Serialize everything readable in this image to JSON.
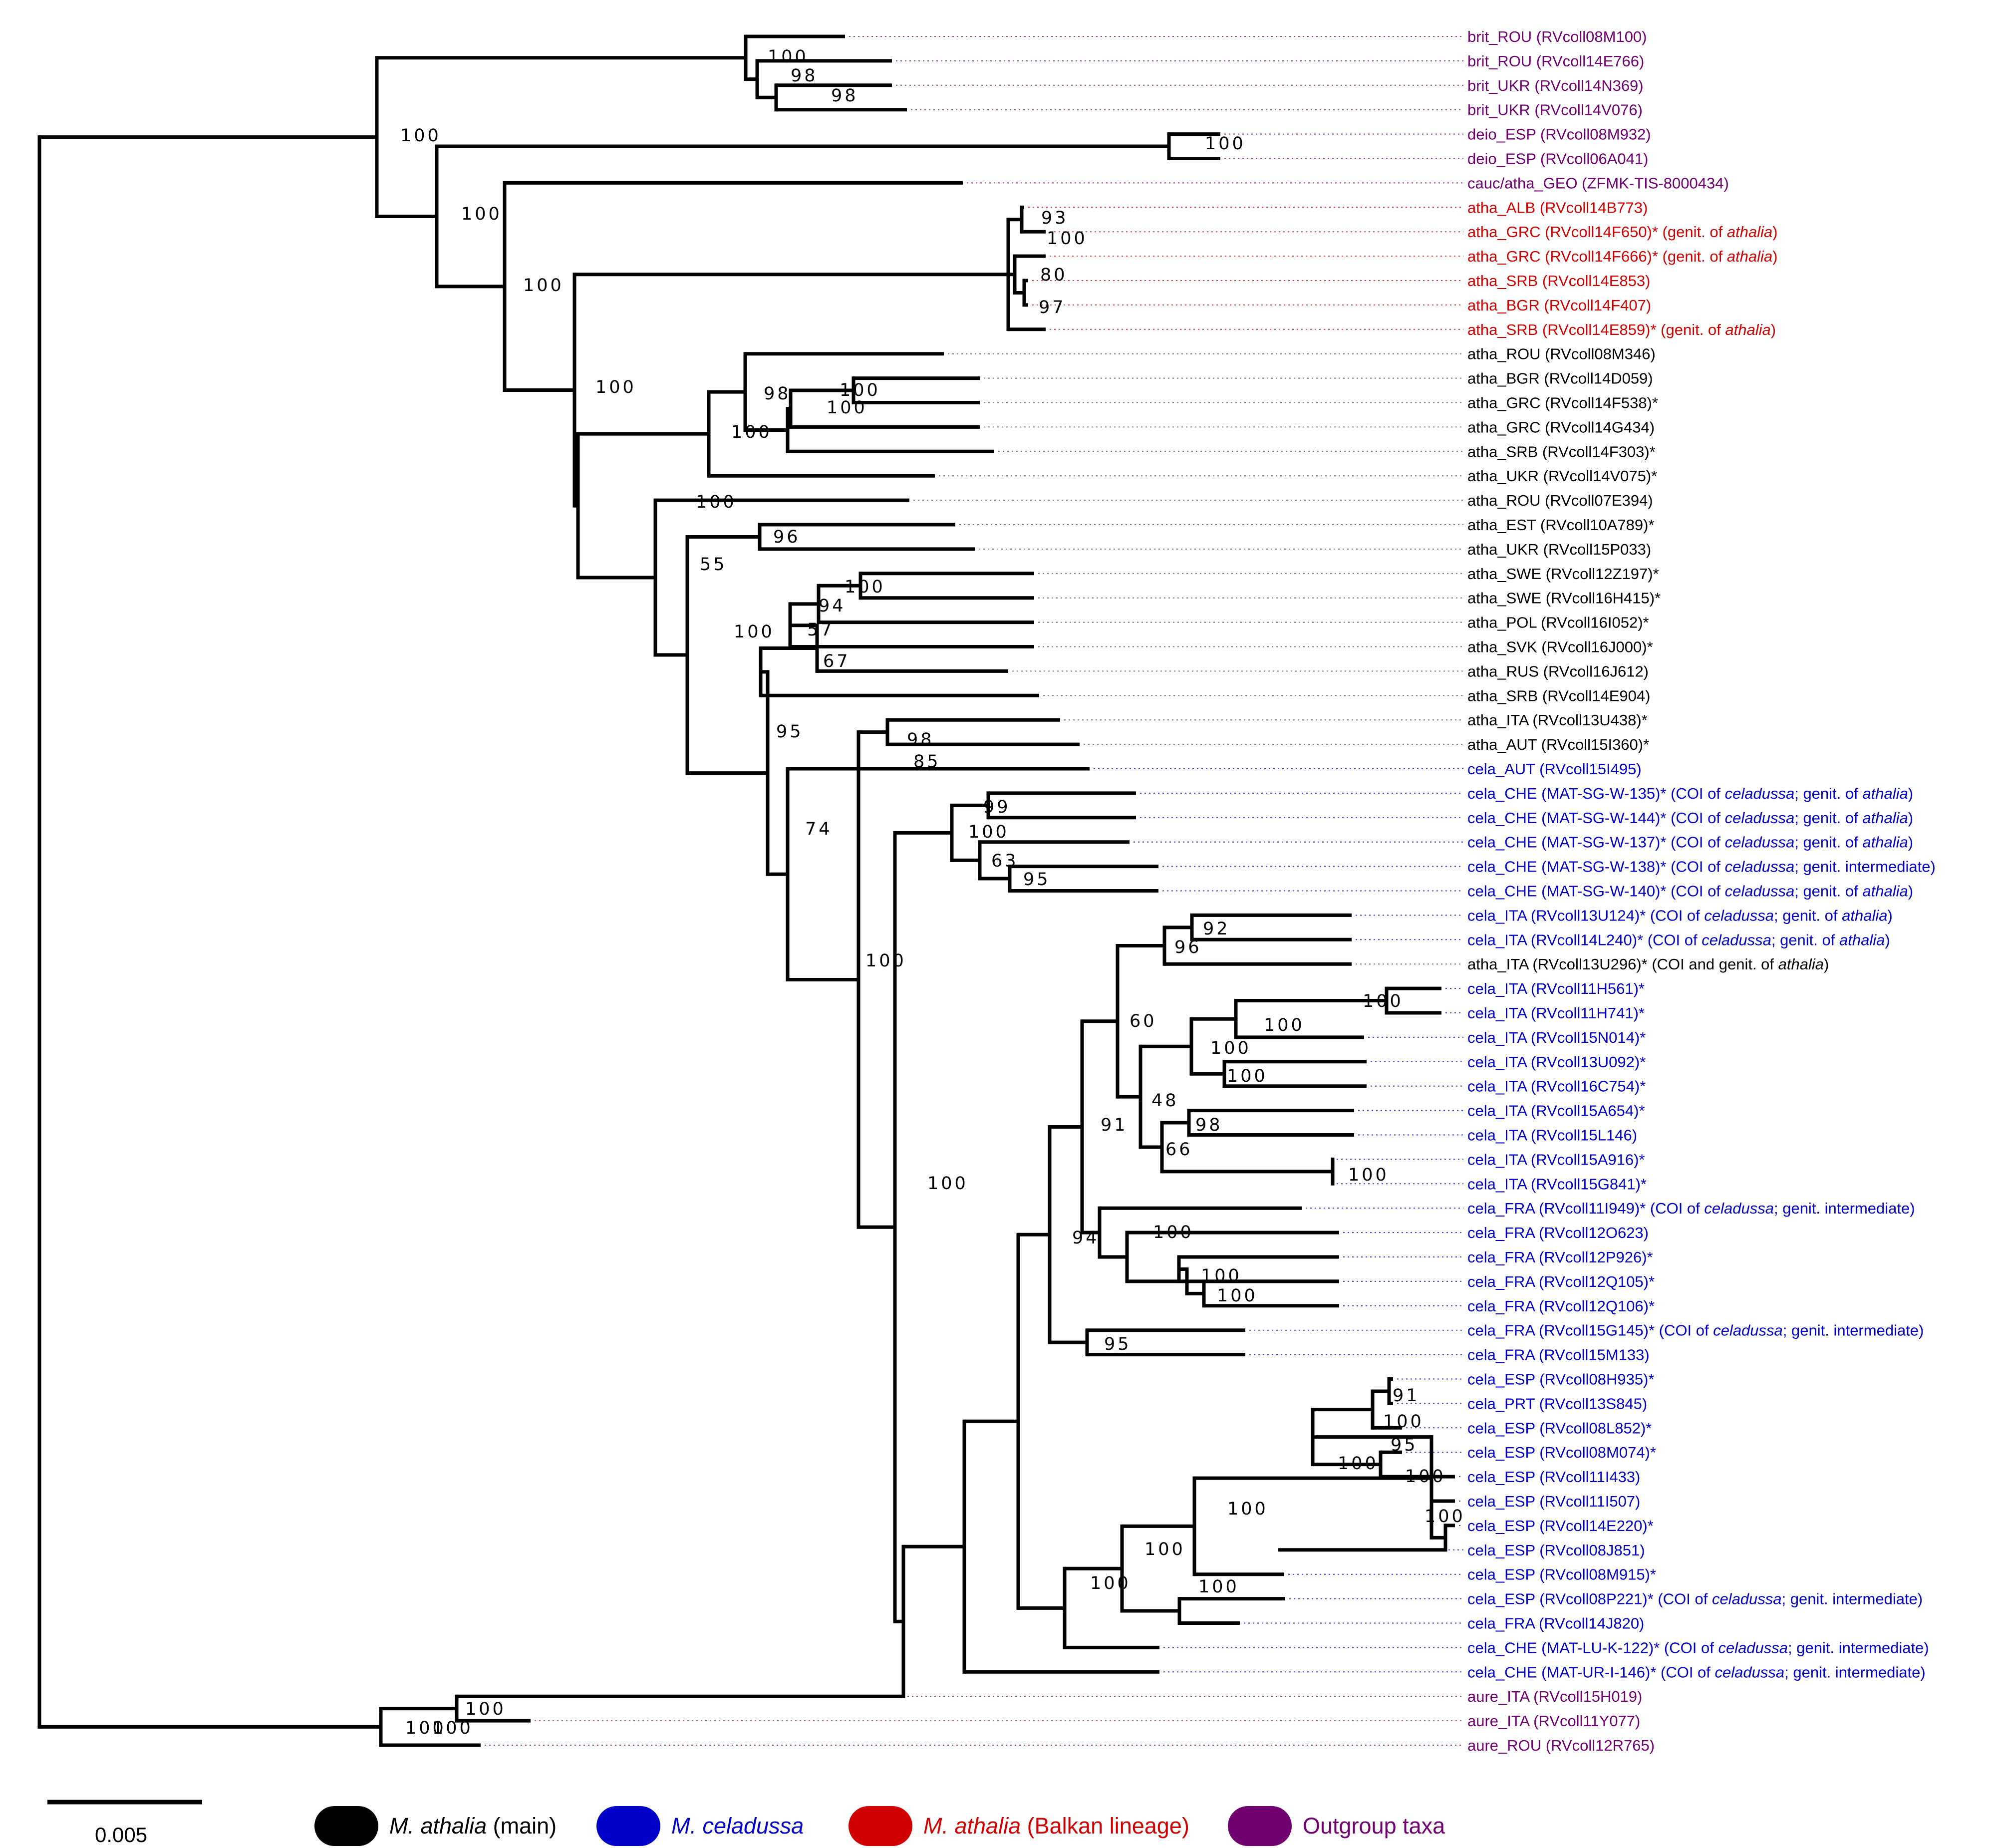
{
  "colors": {
    "athalia_main": "#000000",
    "celadussa": "#0000c8",
    "balkan": "#d00000",
    "outgroup": "#700070",
    "leader_black": "#7a7a7a",
    "leader_blue": "#3d3dd8",
    "leader_red": "#d04040",
    "leader_purple": "#904090"
  },
  "tips": [
    {
      "id": "t0",
      "group": "outgroup",
      "parts": [
        {
          "t": "brit_ROU    (RVcoll08M100)"
        }
      ]
    },
    {
      "id": "t1",
      "group": "outgroup",
      "parts": [
        {
          "t": "brit_ROU     (RVcoll14E766)"
        }
      ]
    },
    {
      "id": "t2",
      "group": "outgroup",
      "parts": [
        {
          "t": "brit_UKR (RVcoll14N369)"
        }
      ]
    },
    {
      "id": "t3",
      "group": "outgroup",
      "parts": [
        {
          "t": "brit_UKR (RVcoll14V076)"
        }
      ]
    },
    {
      "id": "t4",
      "group": "outgroup",
      "parts": [
        {
          "t": "deio_ESP (RVcoll08M932)"
        }
      ]
    },
    {
      "id": "t5",
      "group": "outgroup",
      "parts": [
        {
          "t": "deio_ESP (RVcoll06A041)"
        }
      ]
    },
    {
      "id": "t6",
      "group": "outgroup",
      "parts": [
        {
          "t": "cauc/atha_GEO (ZFMK-TIS-8000434)"
        }
      ]
    },
    {
      "id": "t7",
      "group": "balkan",
      "parts": [
        {
          "t": "atha_ALB (RVcoll14B773)"
        }
      ]
    },
    {
      "id": "t8",
      "group": "balkan",
      "parts": [
        {
          "t": "atha_GRC (RVcoll14F650)* (genit. of "
        },
        {
          "t": "athalia",
          "i": true
        },
        {
          "t": ")"
        }
      ]
    },
    {
      "id": "t9",
      "group": "balkan",
      "parts": [
        {
          "t": "atha_GRC (RVcoll14F666)* (genit. of "
        },
        {
          "t": "athalia",
          "i": true
        },
        {
          "t": ")"
        }
      ]
    },
    {
      "id": "t10",
      "group": "balkan",
      "parts": [
        {
          "t": "atha_SRB (RVcoll14E853)"
        }
      ]
    },
    {
      "id": "t11",
      "group": "balkan",
      "parts": [
        {
          "t": "atha_BGR (RVcoll14F407)"
        }
      ]
    },
    {
      "id": "t12",
      "group": "balkan",
      "parts": [
        {
          "t": "atha_SRB (RVcoll14E859)* (genit. of "
        },
        {
          "t": "athalia",
          "i": true
        },
        {
          "t": ")"
        }
      ]
    },
    {
      "id": "t13",
      "group": "athalia_main",
      "parts": [
        {
          "t": "atha_ROU (RVcoll08M346)"
        }
      ]
    },
    {
      "id": "t14",
      "group": "athalia_main",
      "parts": [
        {
          "t": "atha_BGR (RVcoll14D059)"
        }
      ]
    },
    {
      "id": "t15",
      "group": "athalia_main",
      "parts": [
        {
          "t": "atha_GRC (RVcoll14F538)*"
        }
      ]
    },
    {
      "id": "t16",
      "group": "athalia_main",
      "parts": [
        {
          "t": "atha_GRC (RVcoll14G434)"
        }
      ]
    },
    {
      "id": "t17",
      "group": "athalia_main",
      "parts": [
        {
          "t": "atha_SRB (RVcoll14F303)*"
        }
      ]
    },
    {
      "id": "t18",
      "group": "athalia_main",
      "parts": [
        {
          "t": "atha_UKR (RVcoll14V075)*"
        }
      ]
    },
    {
      "id": "t19",
      "group": "athalia_main",
      "parts": [
        {
          "t": "atha_ROU (RVcoll07E394)"
        }
      ]
    },
    {
      "id": "t20",
      "group": "athalia_main",
      "parts": [
        {
          "t": "atha_EST (RVcoll10A789)*"
        }
      ]
    },
    {
      "id": "t21",
      "group": "athalia_main",
      "parts": [
        {
          "t": "atha_UKR (RVcoll15P033)"
        }
      ]
    },
    {
      "id": "t22",
      "group": "athalia_main",
      "parts": [
        {
          "t": "atha_SWE (RVcoll12Z197)*"
        }
      ]
    },
    {
      "id": "t23",
      "group": "athalia_main",
      "parts": [
        {
          "t": "atha_SWE (RVcoll16H415)*"
        }
      ]
    },
    {
      "id": "t24",
      "group": "athalia_main",
      "parts": [
        {
          "t": "atha_POL (RVcoll16I052)*"
        }
      ]
    },
    {
      "id": "t25",
      "group": "athalia_main",
      "parts": [
        {
          "t": "atha_SVK (RVcoll16J000)*"
        }
      ]
    },
    {
      "id": "t26",
      "group": "athalia_main",
      "parts": [
        {
          "t": "atha_RUS (RVcoll16J612)"
        }
      ]
    },
    {
      "id": "t27",
      "group": "athalia_main",
      "parts": [
        {
          "t": "atha_SRB (RVcoll14E904)"
        }
      ]
    },
    {
      "id": "t28",
      "group": "athalia_main",
      "parts": [
        {
          "t": "atha_ITA (RVcoll13U438)*"
        }
      ]
    },
    {
      "id": "t29",
      "group": "athalia_main",
      "parts": [
        {
          "t": "atha_AUT (RVcoll15I360)*"
        }
      ]
    },
    {
      "id": "t30",
      "group": "celadussa",
      "parts": [
        {
          "t": "cela_AUT (RVcoll15I495)"
        }
      ]
    },
    {
      "id": "t31",
      "group": "celadussa",
      "parts": [
        {
          "t": "cela_CHE (MAT-SG-W-135)* (COI of "
        },
        {
          "t": "celadussa",
          "i": true
        },
        {
          "t": "; genit. of "
        },
        {
          "t": "athalia",
          "i": true
        },
        {
          "t": ")"
        }
      ]
    },
    {
      "id": "t32",
      "group": "celadussa",
      "parts": [
        {
          "t": "cela_CHE (MAT-SG-W-144)* (COI of "
        },
        {
          "t": "celadussa",
          "i": true
        },
        {
          "t": "; genit. of "
        },
        {
          "t": "athalia",
          "i": true
        },
        {
          "t": ")"
        }
      ]
    },
    {
      "id": "t33",
      "group": "celadussa",
      "parts": [
        {
          "t": "cela_CHE (MAT-SG-W-137)* (COI of "
        },
        {
          "t": "celadussa",
          "i": true
        },
        {
          "t": "; genit. of "
        },
        {
          "t": "athalia",
          "i": true
        },
        {
          "t": ")"
        }
      ]
    },
    {
      "id": "t34",
      "group": "celadussa",
      "parts": [
        {
          "t": "cela_CHE (MAT-SG-W-138)* (COI of "
        },
        {
          "t": "celadussa",
          "i": true
        },
        {
          "t": "; genit. intermediate)"
        }
      ]
    },
    {
      "id": "t35",
      "group": "celadussa",
      "parts": [
        {
          "t": "cela_CHE (MAT-SG-W-140)* (COI of "
        },
        {
          "t": "celadussa",
          "i": true
        },
        {
          "t": "; genit. of "
        },
        {
          "t": "athalia",
          "i": true
        },
        {
          "t": ")"
        }
      ]
    },
    {
      "id": "t36",
      "group": "celadussa",
      "parts": [
        {
          "t": "cela_ITA (RVcoll13U124)* (COI of "
        },
        {
          "t": "celadussa",
          "i": true
        },
        {
          "t": "; genit. of "
        },
        {
          "t": "athalia",
          "i": true
        },
        {
          "t": ")"
        }
      ]
    },
    {
      "id": "t37",
      "group": "celadussa",
      "parts": [
        {
          "t": "cela_ITA (RVcoll14L240)* (COI of "
        },
        {
          "t": "celadussa",
          "i": true
        },
        {
          "t": "; genit. of "
        },
        {
          "t": "athalia",
          "i": true
        },
        {
          "t": ")"
        }
      ]
    },
    {
      "id": "t38",
      "group": "athalia_main",
      "parts": [
        {
          "t": "atha_ITA (RVcoll13U296)* (COI and genit. of "
        },
        {
          "t": "athalia",
          "i": true
        },
        {
          "t": ")"
        }
      ]
    },
    {
      "id": "t39",
      "group": "celadussa",
      "parts": [
        {
          "t": "cela_ITA (RVcoll11H561)*"
        }
      ]
    },
    {
      "id": "t40",
      "group": "celadussa",
      "parts": [
        {
          "t": "cela_ITA (RVcoll11H741)*"
        }
      ]
    },
    {
      "id": "t41",
      "group": "celadussa",
      "parts": [
        {
          "t": "cela_ITA (RVcoll15N014)*"
        }
      ]
    },
    {
      "id": "t42",
      "group": "celadussa",
      "parts": [
        {
          "t": "cela_ITA (RVcoll13U092)*"
        }
      ]
    },
    {
      "id": "t43",
      "group": "celadussa",
      "parts": [
        {
          "t": "cela_ITA (RVcoll16C754)*"
        }
      ]
    },
    {
      "id": "t44",
      "group": "celadussa",
      "parts": [
        {
          "t": "cela_ITA (RVcoll15A654)*"
        }
      ]
    },
    {
      "id": "t45",
      "group": "celadussa",
      "parts": [
        {
          "t": "cela_ITA (RVcoll15L146)"
        }
      ]
    },
    {
      "id": "t46",
      "group": "celadussa",
      "parts": [
        {
          "t": "cela_ITA (RVcoll15A916)*"
        }
      ]
    },
    {
      "id": "t47",
      "group": "celadussa",
      "parts": [
        {
          "t": "cela_ITA (RVcoll15G841)*"
        }
      ]
    },
    {
      "id": "t48",
      "group": "celadussa",
      "parts": [
        {
          "t": "cela_FRA (RVcoll11I949)* (COI of "
        },
        {
          "t": "celadussa",
          "i": true
        },
        {
          "t": "; genit. intermediate)"
        }
      ]
    },
    {
      "id": "t49",
      "group": "celadussa",
      "parts": [
        {
          "t": "cela_FRA (RVcoll12O623)"
        }
      ]
    },
    {
      "id": "t50",
      "group": "celadussa",
      "parts": [
        {
          "t": "cela_FRA (RVcoll12P926)*"
        }
      ]
    },
    {
      "id": "t51",
      "group": "celadussa",
      "parts": [
        {
          "t": "cela_FRA (RVcoll12Q105)*"
        }
      ]
    },
    {
      "id": "t52",
      "group": "celadussa",
      "parts": [
        {
          "t": "cela_FRA (RVcoll12Q106)*"
        }
      ]
    },
    {
      "id": "t53",
      "group": "celadussa",
      "parts": [
        {
          "t": "cela_FRA (RVcoll15G145)* (COI of "
        },
        {
          "t": "celadussa",
          "i": true
        },
        {
          "t": "; genit. intermediate)"
        }
      ]
    },
    {
      "id": "t54",
      "group": "celadussa",
      "parts": [
        {
          "t": "cela_FRA (RVcoll15M133)"
        }
      ]
    },
    {
      "id": "t55",
      "group": "celadussa",
      "parts": [
        {
          "t": "cela_ESP (RVcoll08H935)*"
        }
      ]
    },
    {
      "id": "t56",
      "group": "celadussa",
      "parts": [
        {
          "t": "cela_PRT (RVcoll13S845)"
        }
      ]
    },
    {
      "id": "t57",
      "group": "celadussa",
      "parts": [
        {
          "t": "cela_ESP (RVcoll08L852)*"
        }
      ]
    },
    {
      "id": "t58",
      "group": "celadussa",
      "parts": [
        {
          "t": "cela_ESP (RVcoll08M074)*"
        }
      ]
    },
    {
      "id": "t59",
      "group": "celadussa",
      "parts": [
        {
          "t": "cela_ESP (RVcoll11I433)"
        }
      ]
    },
    {
      "id": "t60",
      "group": "celadussa",
      "parts": [
        {
          "t": "cela_ESP (RVcoll11I507)"
        }
      ]
    },
    {
      "id": "t61",
      "group": "celadussa",
      "parts": [
        {
          "t": "cela_ESP (RVcoll14E220)*"
        }
      ]
    },
    {
      "id": "t62",
      "group": "celadussa",
      "parts": [
        {
          "t": "cela_ESP (RVcoll08J851)"
        }
      ]
    },
    {
      "id": "t63",
      "group": "celadussa",
      "parts": [
        {
          "t": "cela_ESP (RVcoll08M915)*"
        }
      ]
    },
    {
      "id": "t64",
      "group": "celadussa",
      "parts": [
        {
          "t": "cela_ESP (RVcoll08P221)* (COI of "
        },
        {
          "t": "celadussa",
          "i": true
        },
        {
          "t": "; genit. intermediate)"
        }
      ]
    },
    {
      "id": "t65",
      "group": "celadussa",
      "parts": [
        {
          "t": "cela_FRA (RVcoll14J820)"
        }
      ]
    },
    {
      "id": "t66",
      "group": "celadussa",
      "parts": [
        {
          "t": "cela_CHE (MAT-LU-K-122)* (COI of "
        },
        {
          "t": "celadussa",
          "i": true
        },
        {
          "t": "; genit. intermediate)"
        }
      ]
    },
    {
      "id": "t67",
      "group": "celadussa",
      "parts": [
        {
          "t": "cela_CHE (MAT-UR-I-146)* (COI of "
        },
        {
          "t": "celadussa",
          "i": true
        },
        {
          "t": "; genit. intermediate)"
        }
      ]
    },
    {
      "id": "t68",
      "group": "outgroup",
      "parts": [
        {
          "t": "aure_ITA (RVcoll15H019)"
        }
      ]
    },
    {
      "id": "t69",
      "group": "outgroup",
      "parts": [
        {
          "t": "aure_ITA (RVcoll11Y077)"
        }
      ]
    },
    {
      "id": "t70",
      "group": "outgroup",
      "parts": [
        {
          "t": "aure_ROU (RVcoll12R765)"
        }
      ]
    }
  ],
  "supports": [
    "100",
    "98",
    "98",
    "100",
    "100",
    "100",
    "93",
    "100",
    "100",
    "80",
    "97",
    "100",
    "98",
    "100",
    "100",
    "100",
    "100",
    "55",
    "96",
    "100",
    "100",
    "94",
    "57",
    "67",
    "95",
    "98",
    "85",
    "74",
    "99",
    "100",
    "63",
    "95",
    "100",
    "92",
    "96",
    "60",
    "100",
    "100",
    "100",
    "48",
    "98",
    "66",
    "100",
    "91",
    "100",
    "94",
    "100",
    "100",
    "100",
    "95",
    "100",
    "91",
    "100",
    "95",
    "100",
    "100",
    "100",
    "100",
    "100",
    "100",
    "100",
    "100",
    "100",
    "100"
  ],
  "scale_bar": {
    "label": "0.005"
  },
  "legend": [
    {
      "key": "athalia_main",
      "parts": [
        {
          "t": "M. athalia",
          "i": true
        },
        {
          "t": " (main)"
        }
      ],
      "text_color": "#000000"
    },
    {
      "key": "celadussa",
      "parts": [
        {
          "t": "M. celadussa",
          "i": true
        }
      ],
      "text_color": "#0000c8"
    },
    {
      "key": "balkan",
      "parts": [
        {
          "t": "M. athalia",
          "i": true
        },
        {
          "t": " (Balkan lineage)"
        }
      ],
      "text_color": "#d00000"
    },
    {
      "key": "outgroup",
      "parts": [
        {
          "t": "Outgroup taxa"
        }
      ],
      "text_color": "#700070"
    }
  ]
}
